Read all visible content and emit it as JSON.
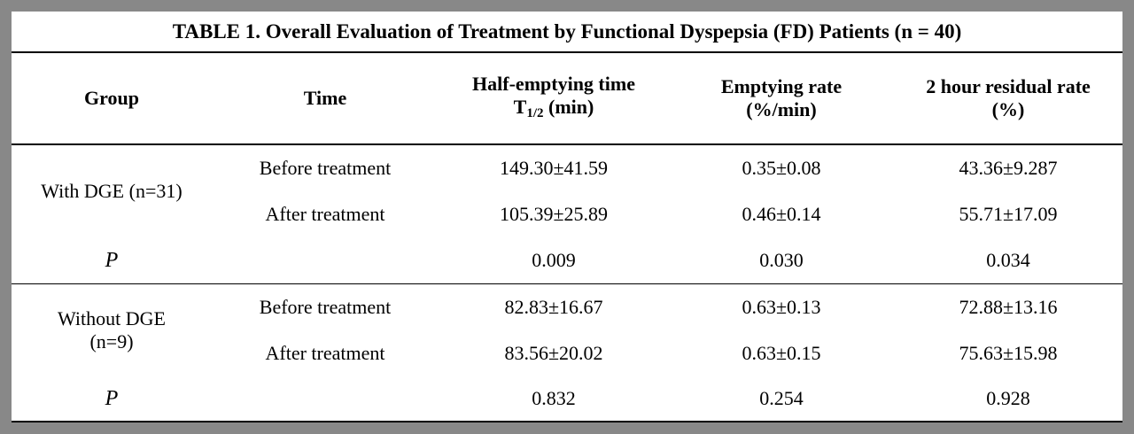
{
  "title": "TABLE 1. Overall Evaluation of Treatment by Functional Dyspepsia (FD)  Patients (n = 40)",
  "headers": {
    "group": "Group",
    "time": "Time",
    "half_line1": "Half-emptying time",
    "half_line2_main": "T",
    "half_line2_sub": "1/2",
    "half_line2_rest": " (min)",
    "rate_line1": "Emptying rate",
    "rate_line2": "(%/min)",
    "resid_line1": "2 hour residual rate",
    "resid_line2": "(%)"
  },
  "sections": [
    {
      "group_line1": "With DGE (n=31)",
      "group_line2": "",
      "rows": [
        {
          "time": "Before treatment",
          "half": "149.30±41.59",
          "rate": "0.35±0.08",
          "resid": "43.36±9.287"
        },
        {
          "time": "After treatment",
          "half": "105.39±25.89",
          "rate": "0.46±0.14",
          "resid": "55.71±17.09"
        }
      ],
      "p_label": "P",
      "p": {
        "half": "0.009",
        "rate": "0.030",
        "resid": "0.034"
      }
    },
    {
      "group_line1": "Without DGE",
      "group_line2": "(n=9)",
      "rows": [
        {
          "time": "Before treatment",
          "half": "82.83±16.67",
          "rate": "0.63±0.13",
          "resid": "72.88±13.16"
        },
        {
          "time": "After treatment",
          "half": "83.56±20.02",
          "rate": "0.63±0.15",
          "resid": "75.63±15.98"
        }
      ],
      "p_label": "P",
      "p": {
        "half": "0.832",
        "rate": "0.254",
        "resid": "0.928"
      }
    }
  ]
}
